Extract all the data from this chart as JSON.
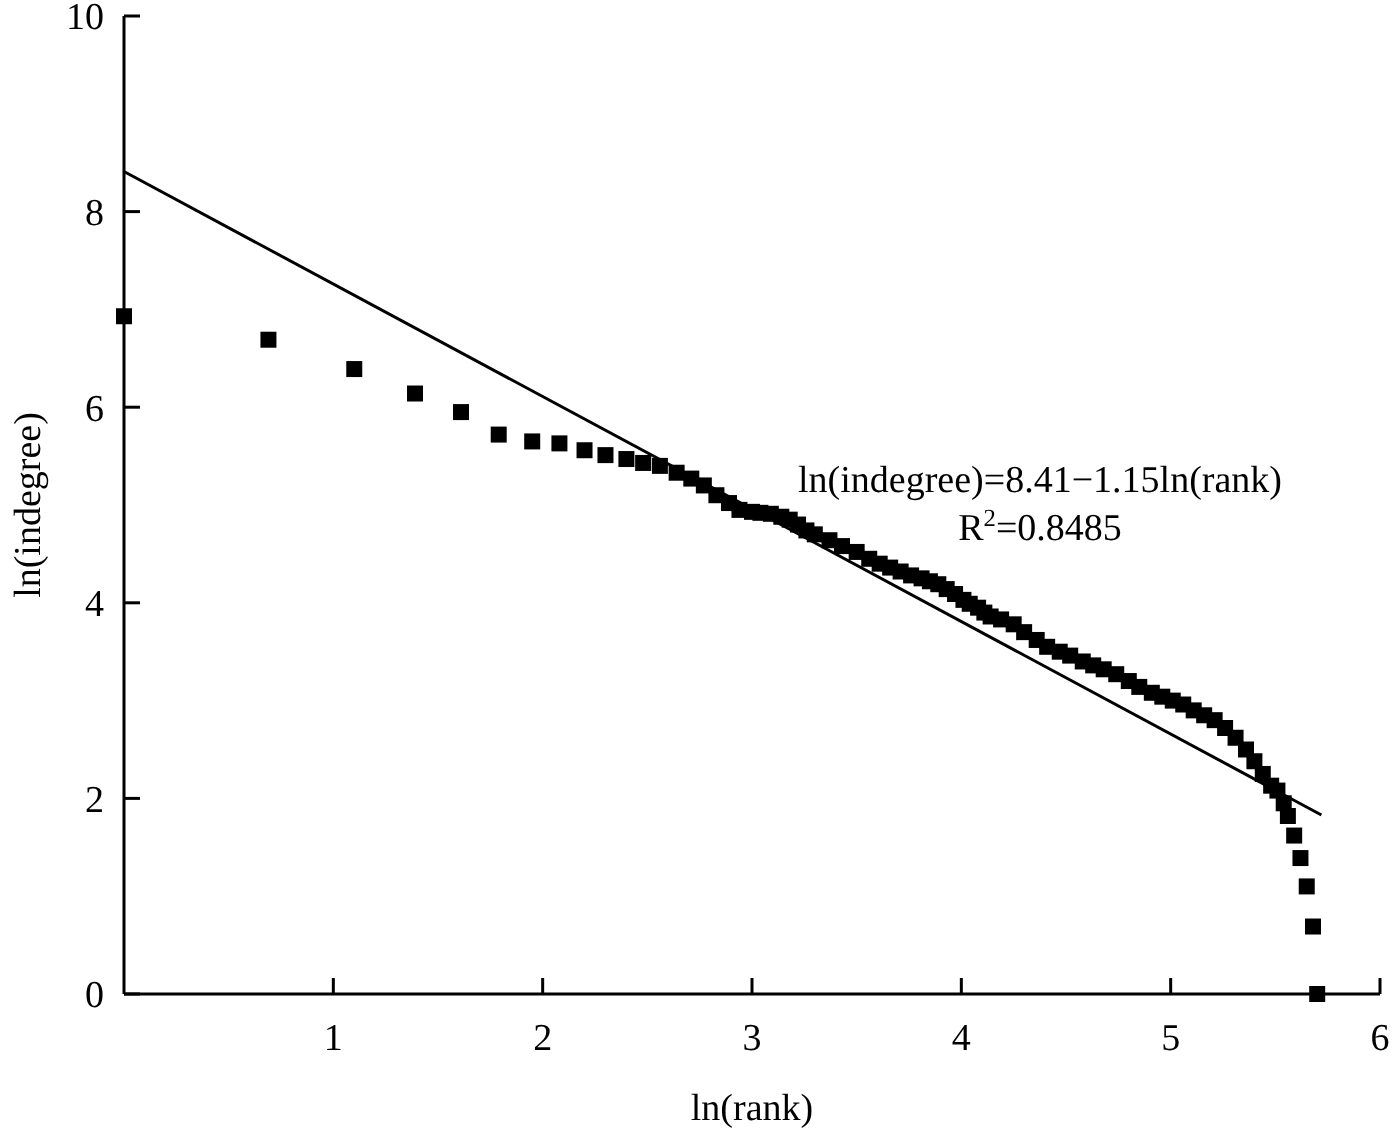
{
  "chart_data": {
    "type": "scatter",
    "xlabel": "ln(rank)",
    "ylabel": "ln(indegree)",
    "xlim": [
      0,
      6
    ],
    "xticks": [
      1,
      2,
      3,
      4,
      5,
      6
    ],
    "ylim": [
      0,
      10
    ],
    "yticks": [
      0,
      2,
      4,
      6,
      8,
      10
    ],
    "grid": false,
    "marker": "square",
    "annotations": [
      "ln(indegree)=8.41−1.15ln(rank)",
      "R$^{2}$=0.8485"
    ],
    "series": [
      {
        "type": "scatter",
        "color": "#000000",
        "x": [
          0,
          0.69,
          1.1,
          1.39,
          1.61,
          1.79,
          1.95,
          2.08,
          2.2,
          2.3,
          2.4,
          2.48,
          2.56,
          2.64,
          2.71,
          2.77,
          2.83,
          2.89,
          2.94,
          3.0,
          3.04,
          3.09,
          3.14,
          3.18,
          3.22,
          3.26,
          3.3,
          3.37,
          3.43,
          3.5,
          3.56,
          3.61,
          3.66,
          3.71,
          3.76,
          3.81,
          3.85,
          3.89,
          3.93,
          3.97,
          4.01,
          4.04,
          4.08,
          4.11,
          4.14,
          4.19,
          4.25,
          4.3,
          4.36,
          4.41,
          4.47,
          4.52,
          4.58,
          4.63,
          4.68,
          4.74,
          4.8,
          4.85,
          4.91,
          4.96,
          5.01,
          5.06,
          5.11,
          5.16,
          5.21,
          5.26,
          5.31,
          5.36,
          5.4,
          5.44,
          5.48,
          5.51,
          5.54,
          5.56,
          5.59,
          5.62,
          5.65,
          5.68,
          5.7
        ],
        "values": [
          6.93,
          6.69,
          6.39,
          6.14,
          5.95,
          5.72,
          5.65,
          5.63,
          5.56,
          5.51,
          5.47,
          5.43,
          5.4,
          5.33,
          5.27,
          5.2,
          5.1,
          5.02,
          4.95,
          4.93,
          4.92,
          4.91,
          4.88,
          4.85,
          4.8,
          4.74,
          4.7,
          4.64,
          4.58,
          4.52,
          4.45,
          4.4,
          4.36,
          4.32,
          4.28,
          4.25,
          4.22,
          4.19,
          4.14,
          4.09,
          4.03,
          3.99,
          3.95,
          3.9,
          3.86,
          3.83,
          3.78,
          3.7,
          3.62,
          3.55,
          3.5,
          3.46,
          3.4,
          3.36,
          3.32,
          3.27,
          3.2,
          3.14,
          3.08,
          3.04,
          3.0,
          2.96,
          2.9,
          2.85,
          2.8,
          2.72,
          2.62,
          2.5,
          2.38,
          2.25,
          2.13,
          2.08,
          1.95,
          1.82,
          1.62,
          1.39,
          1.1,
          0.69,
          0
        ]
      },
      {
        "type": "line",
        "color": "#000000",
        "marker": "none",
        "line_style": "solid",
        "x": [
          0,
          5.72
        ],
        "values": [
          8.41,
          1.83
        ]
      }
    ]
  }
}
